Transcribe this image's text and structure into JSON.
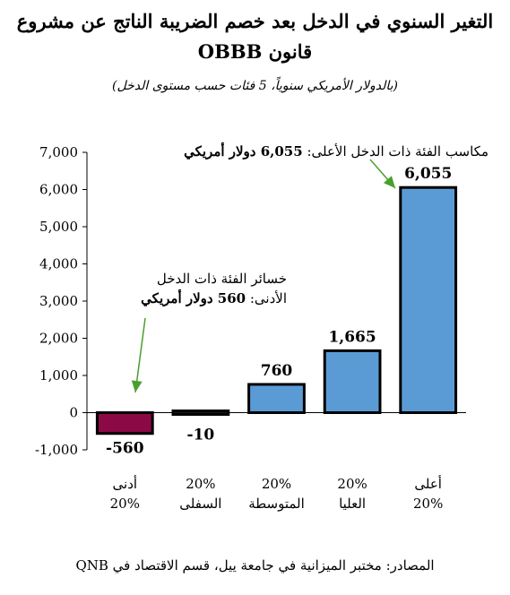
{
  "title_line1": "التغير السنوي في الدخل بعد خصم الضريبة الناتج عن مشروع",
  "title_line2": "قانون OBBB",
  "subtitle": "(بالدولار الأمريكي سنوياً، 5 فئات حسب مستوى الدخل)",
  "annotations": {
    "top_line1": "مكاسب الفئة ذات الدخل الأعلى: ",
    "top_bold_value": "6,055 دولار أمريكي",
    "low_line1": "خسائر الفئة ذات الدخل",
    "low_line2": "الأدنى: ",
    "low_bold_value": "560 دولار أمريكي"
  },
  "source": "المصادر: مختبر الميزانية في جامعة ييل، قسم الاقتصاد في QNB",
  "colors": {
    "negative_bar": "#8b0a45",
    "positive_bar": "#5b9bd5",
    "zero_bar": "#1a1a1a",
    "arrow": "#4aa02c"
  },
  "chart_data": {
    "type": "bar",
    "categories": [
      [
        "أدنى",
        "20%"
      ],
      [
        "20%",
        "السفلى"
      ],
      [
        "20%",
        "المتوسطة"
      ],
      [
        "20%",
        "العليا"
      ],
      [
        "أعلى",
        "20%"
      ]
    ],
    "values": [
      -560,
      -10,
      760,
      1665,
      6055
    ],
    "data_labels": [
      "-560",
      "-10",
      "760",
      "1,665",
      "6,055"
    ],
    "yticks": [
      -1000,
      0,
      1000,
      2000,
      3000,
      4000,
      5000,
      6000,
      7000
    ],
    "ytick_labels": [
      "-1,000",
      "0",
      "1,000",
      "2,000",
      "3,000",
      "4,000",
      "5,000",
      "6,000",
      "7,000"
    ],
    "ylim": [
      -1000,
      7000
    ],
    "grid": false,
    "legend": "none"
  }
}
